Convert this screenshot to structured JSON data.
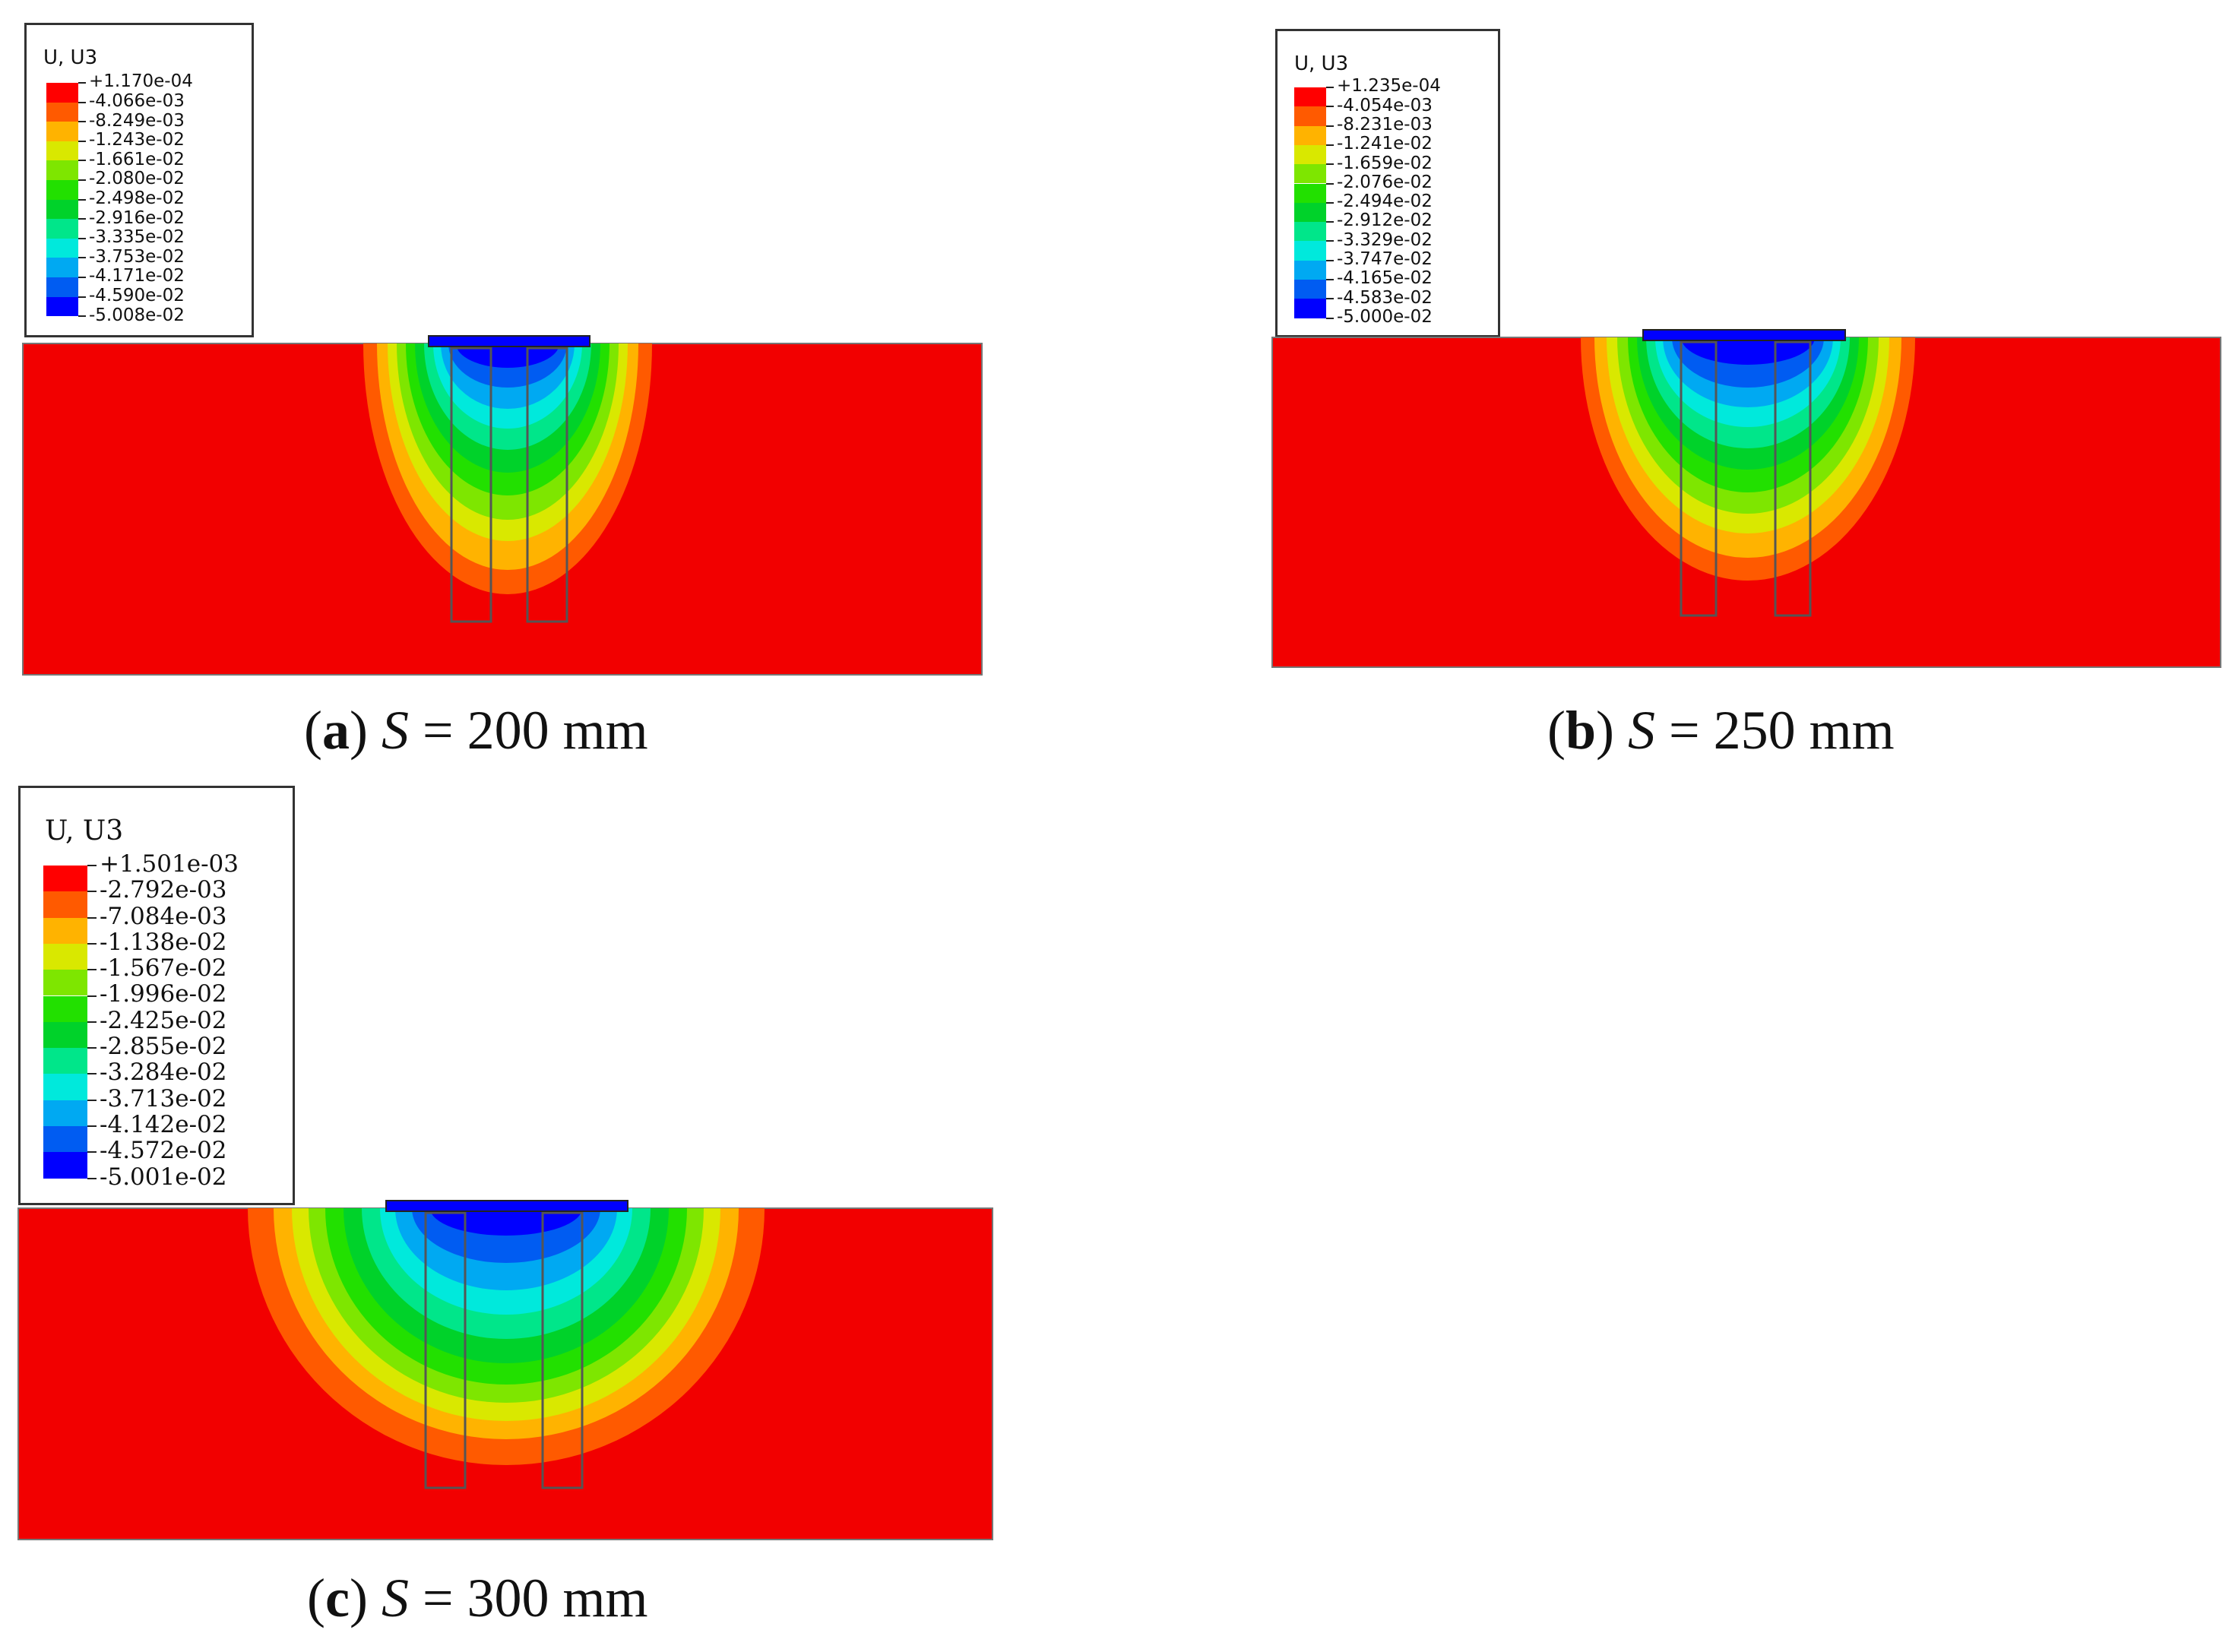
{
  "panels": [
    {
      "id": "a",
      "legend_title": "U, U3",
      "legend_values": [
        "+1.170e-04",
        "-4.066e-03",
        "-8.249e-03",
        "-1.243e-02",
        "-1.661e-02",
        "-2.080e-02",
        "-2.498e-02",
        "-2.916e-02",
        "-3.335e-02",
        "-3.753e-02",
        "-4.171e-02",
        "-4.590e-02",
        "-5.008e-02"
      ],
      "caption_letter": "a",
      "caption_var": "S",
      "caption_rest": " = 200 mm"
    },
    {
      "id": "b",
      "legend_title": "U, U3",
      "legend_values": [
        "+1.235e-04",
        "-4.054e-03",
        "-8.231e-03",
        "-1.241e-02",
        "-1.659e-02",
        "-2.076e-02",
        "-2.494e-02",
        "-2.912e-02",
        "-3.329e-02",
        "-3.747e-02",
        "-4.165e-02",
        "-4.583e-02",
        "-5.000e-02"
      ],
      "caption_letter": "b",
      "caption_var": "S",
      "caption_rest": " = 250 mm"
    },
    {
      "id": "c",
      "legend_title": "U, U3",
      "legend_values": [
        "+1.501e-03",
        "-2.792e-03",
        "-7.084e-03",
        "-1.138e-02",
        "-1.567e-02",
        "-1.996e-02",
        "-2.425e-02",
        "-2.855e-02",
        "-3.284e-02",
        "-3.713e-02",
        "-4.142e-02",
        "-4.572e-02",
        "-5.001e-02"
      ],
      "caption_letter": "c",
      "caption_var": "S",
      "caption_rest": " = 300 mm"
    }
  ],
  "colors": {
    "contour_scale": [
      "#ff0000",
      "#ff5a00",
      "#ffb300",
      "#d9e800",
      "#7ee600",
      "#22e000",
      "#00d22a",
      "#00e68a",
      "#00e9dc",
      "#00a9f2",
      "#005cf2",
      "#0000ff"
    ],
    "background_soil": "#f20000",
    "pile_outline": "#555555"
  }
}
